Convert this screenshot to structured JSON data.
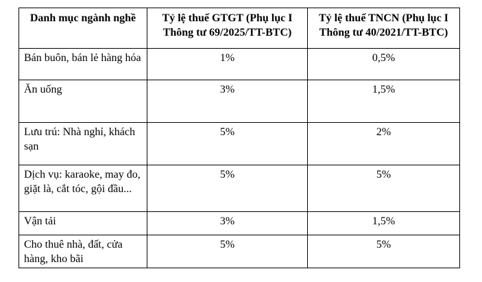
{
  "table": {
    "headers": [
      "Danh mục ngành nghề",
      "Tỷ lệ thuế GTGT (Phụ lục I Thông tư 69/2025/TT-BTC)",
      "Tỷ lệ thuế TNCN (Phụ lục I Thông tư 40/2021/TT-BTC)"
    ],
    "rows": [
      [
        "Bán buôn, bán lẻ hàng hóa",
        "1%",
        "0,5%"
      ],
      [
        "Ăn uống",
        "3%",
        "1,5%"
      ],
      [
        "Lưu trú: Nhà nghỉ, khách sạn",
        "5%",
        "2%"
      ],
      [
        "Dịch vụ: karaoke, may đo, giặt là, cắt tóc, gội đầu...",
        "5%",
        "5%"
      ],
      [
        "Vận tải",
        "3%",
        "1,5%"
      ],
      [
        "Cho thuê nhà, đất, cửa hàng, kho bãi",
        "5%",
        "5%"
      ]
    ]
  }
}
